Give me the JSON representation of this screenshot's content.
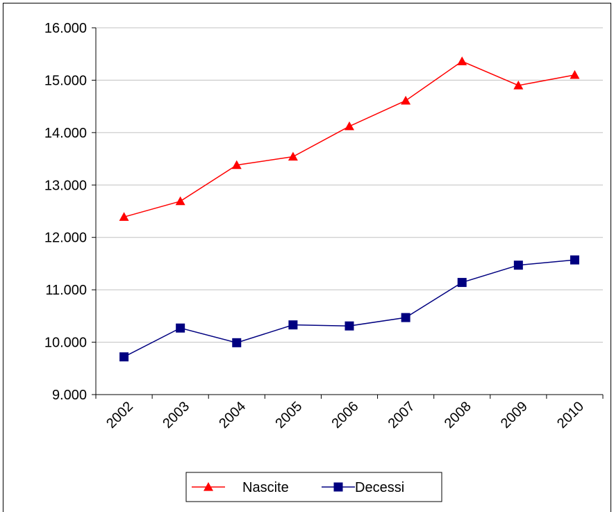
{
  "chart_data": {
    "type": "line",
    "title": "",
    "xlabel": "",
    "ylabel": "",
    "categories": [
      "2002",
      "2003",
      "2004",
      "2005",
      "2006",
      "2007",
      "2008",
      "2009",
      "2010"
    ],
    "ylim": [
      9000,
      16000
    ],
    "yticks": [
      9000,
      10000,
      11000,
      12000,
      13000,
      14000,
      15000,
      16000
    ],
    "ytick_labels": [
      "9.000",
      "10.000",
      "11.000",
      "12.000",
      "13.000",
      "14.000",
      "15.000",
      "16.000"
    ],
    "grid": true,
    "legend_position": "bottom",
    "series": [
      {
        "name": "Nascite",
        "color": "#ff0000",
        "marker": "triangle",
        "values": [
          12390,
          12690,
          13380,
          13540,
          14120,
          14610,
          15360,
          14900,
          15100
        ]
      },
      {
        "name": "Decessi",
        "color": "#000080",
        "marker": "square",
        "values": [
          9720,
          10270,
          9990,
          10330,
          10310,
          10470,
          11140,
          11470,
          11570
        ]
      }
    ]
  }
}
